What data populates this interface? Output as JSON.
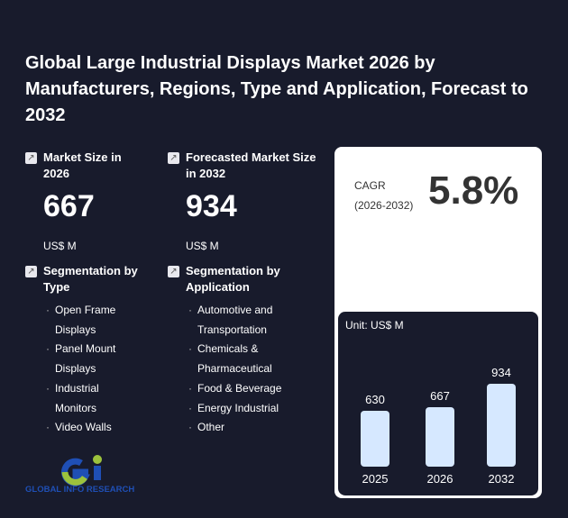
{
  "title": "Global Large Industrial Displays Market 2026 by Manufacturers, Regions, Type and Application, Forecast to 2032",
  "market_size": {
    "label": "Market Size in 2026",
    "value": "667",
    "unit": "US$ M"
  },
  "forecast": {
    "label": "Forecasted Market Size in 2032",
    "value": "934",
    "unit": "US$ M"
  },
  "seg_type": {
    "label": "Segmentation by Type",
    "items": [
      "Open Frame Displays",
      "Panel Mount Displays",
      "Industrial Monitors",
      "Video Walls"
    ]
  },
  "seg_app": {
    "label": "Segmentation by Application",
    "items": [
      "Automotive and Transportation",
      "Chemicals & Pharmaceutical",
      "Food & Beverage",
      "Energy Industrial",
      "Other"
    ]
  },
  "cagr": {
    "label": "CAGR",
    "period": "(2026-2032)",
    "value": "5.8%"
  },
  "logo_text": "GLOBAL INFO RESEARCH",
  "chart_data": {
    "type": "bar",
    "title": "Unit: US$ M",
    "categories": [
      "2025",
      "2026",
      "2032"
    ],
    "values": [
      630,
      667,
      934
    ],
    "labels": [
      "630",
      "667",
      "934"
    ],
    "bar_color": "#d6e8ff"
  }
}
